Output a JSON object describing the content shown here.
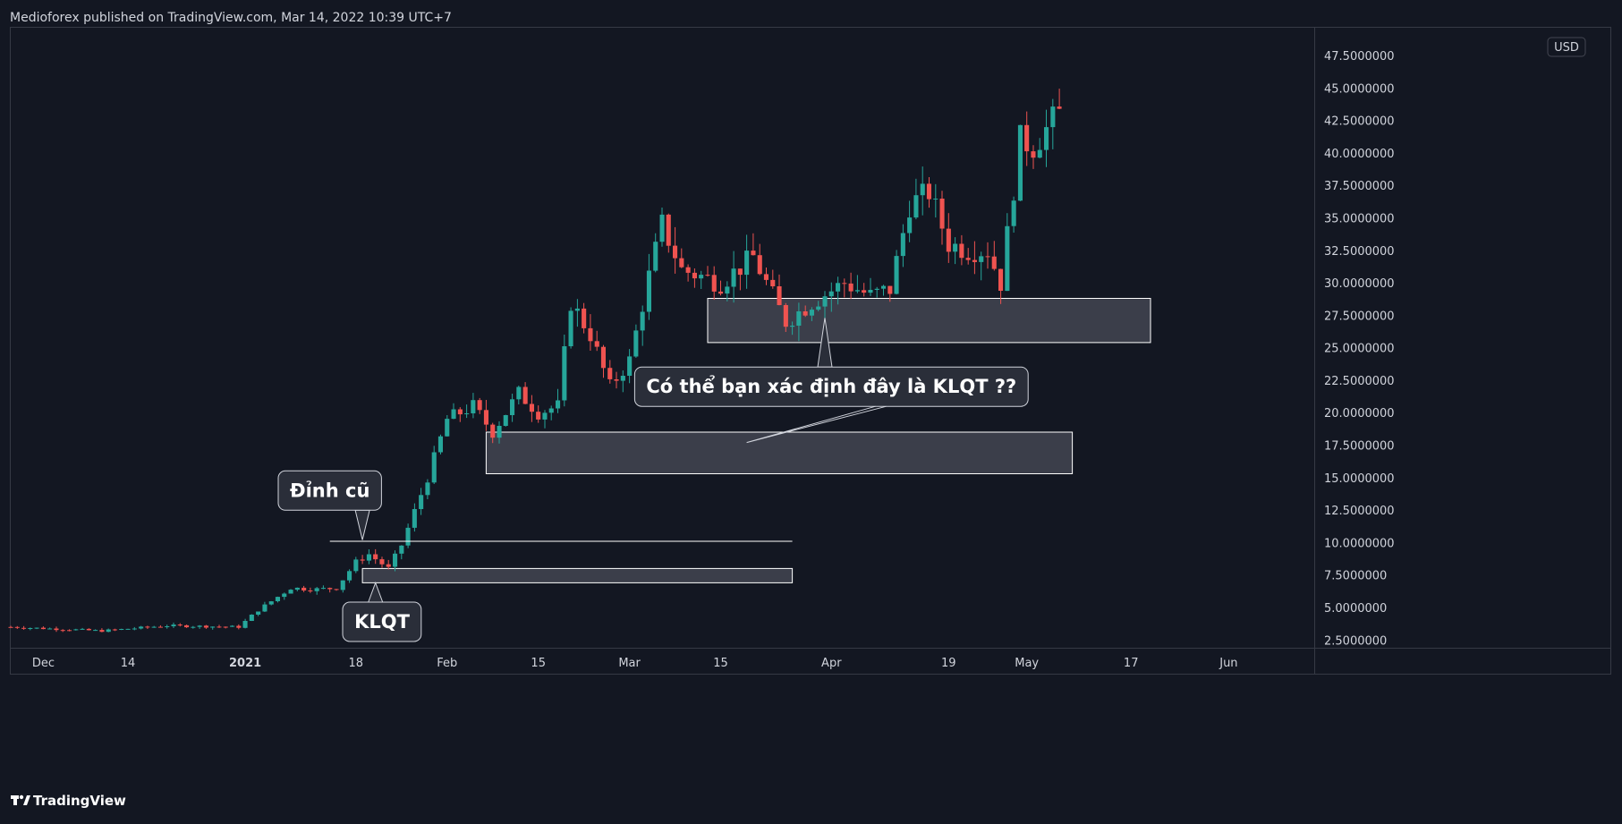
{
  "header": {
    "published_by": "Medioforex published on TradingView.com, Mar 14, 2022 10:39 UTC+7"
  },
  "footer": {
    "brand": "TradingView"
  },
  "colors": {
    "background": "#131722",
    "plot_border": "#363a45",
    "up_candle": "#26a69a",
    "down_candle": "#ef5350",
    "text": "#d1d4dc",
    "annotation_fill": "#2a2e39",
    "box_fill": "rgba(120,123,134,0.40)",
    "box_border": "#ffffff"
  },
  "chart_data": {
    "type": "candlestick",
    "y_axis": {
      "currency": "USD",
      "tick_labels": [
        "47.5000000",
        "45.0000000",
        "42.5000000",
        "40.0000000",
        "37.5000000",
        "35.0000000",
        "32.5000000",
        "30.0000000",
        "27.5000000",
        "25.0000000",
        "22.5000000",
        "20.0000000",
        "17.5000000",
        "15.0000000",
        "12.5000000",
        "10.0000000",
        "7.5000000",
        "5.0000000",
        "2.5000000"
      ],
      "ylim": [
        1.9,
        49.5
      ],
      "scale": "linear"
    },
    "x_axis": {
      "tick_labels": [
        "Dec",
        "14",
        "2021",
        "18",
        "Feb",
        "15",
        "Mar",
        "15",
        "Apr",
        "19",
        "May",
        "17",
        "Jun"
      ],
      "tick_dates": [
        "2020-12-01",
        "2020-12-14",
        "2021-01-01",
        "2021-01-18",
        "2021-02-01",
        "2021-02-15",
        "2021-03-01",
        "2021-03-15",
        "2021-04-01",
        "2021-04-19",
        "2021-05-01",
        "2021-05-17",
        "2021-06-01"
      ],
      "bold_labels": [
        "2021"
      ],
      "start": "2020-11-26",
      "end": "2021-06-14"
    },
    "series_anchors": [
      {
        "date": "2020-11-26",
        "price": 3.5
      },
      {
        "date": "2020-12-10",
        "price": 3.2
      },
      {
        "date": "2020-12-20",
        "price": 3.6
      },
      {
        "date": "2020-12-31",
        "price": 3.5
      },
      {
        "date": "2021-01-03",
        "price": 4.8
      },
      {
        "date": "2021-01-08",
        "price": 6.5
      },
      {
        "date": "2021-01-12",
        "price": 6.4
      },
      {
        "date": "2021-01-15",
        "price": 6.5
      },
      {
        "date": "2021-01-18",
        "price": 8.5
      },
      {
        "date": "2021-01-20",
        "price": 9.1
      },
      {
        "date": "2021-01-23",
        "price": 8.0
      },
      {
        "date": "2021-01-25",
        "price": 9.8
      },
      {
        "date": "2021-01-29",
        "price": 15.0
      },
      {
        "date": "2021-02-01",
        "price": 19.5
      },
      {
        "date": "2021-02-05",
        "price": 20.5
      },
      {
        "date": "2021-02-08",
        "price": 18.5
      },
      {
        "date": "2021-02-12",
        "price": 21.5
      },
      {
        "date": "2021-02-15",
        "price": 20.0
      },
      {
        "date": "2021-02-18",
        "price": 20.5
      },
      {
        "date": "2021-02-20",
        "price": 28.5
      },
      {
        "date": "2021-02-23",
        "price": 26.0
      },
      {
        "date": "2021-02-26",
        "price": 22.0
      },
      {
        "date": "2021-03-01",
        "price": 24.0
      },
      {
        "date": "2021-03-04",
        "price": 30.5
      },
      {
        "date": "2021-03-06",
        "price": 34.5
      },
      {
        "date": "2021-03-09",
        "price": 31.0
      },
      {
        "date": "2021-03-15",
        "price": 30.0
      },
      {
        "date": "2021-03-20",
        "price": 32.0
      },
      {
        "date": "2021-03-23",
        "price": 29.0
      },
      {
        "date": "2021-03-25",
        "price": 27.0
      },
      {
        "date": "2021-03-29",
        "price": 28.5
      },
      {
        "date": "2021-04-03",
        "price": 30.0
      },
      {
        "date": "2021-04-07",
        "price": 29.0
      },
      {
        "date": "2021-04-10",
        "price": 29.5
      },
      {
        "date": "2021-04-13",
        "price": 36.0
      },
      {
        "date": "2021-04-16",
        "price": 37.0
      },
      {
        "date": "2021-04-19",
        "price": 33.0
      },
      {
        "date": "2021-04-22",
        "price": 32.5
      },
      {
        "date": "2021-04-25",
        "price": 32.5
      },
      {
        "date": "2021-04-27",
        "price": 30.0
      },
      {
        "date": "2021-04-30",
        "price": 41.0
      },
      {
        "date": "2021-05-02",
        "price": 40.5
      },
      {
        "date": "2021-05-05",
        "price": 42.5
      },
      {
        "date": "2021-05-06",
        "price": 43.0
      }
    ],
    "last_candle": "2021-05-06",
    "rectangles": [
      {
        "name": "klqt-zone",
        "date_start": "2021-01-19",
        "date_end": "2021-03-26",
        "price_top": 8.0,
        "price_bottom": 6.9
      },
      {
        "name": "previous-klqt-zone",
        "date_start": "2021-02-07",
        "date_end": "2021-05-08",
        "price_top": 18.5,
        "price_bottom": 15.3
      },
      {
        "name": "upper-zone",
        "date_start": "2021-03-13",
        "date_end": "2021-05-20",
        "price_top": 28.8,
        "price_bottom": 25.4
      }
    ],
    "horizontal_lines": [
      {
        "name": "previous-high-line",
        "date_start": "2021-01-14",
        "date_end": "2021-03-26",
        "price": 10.1
      }
    ],
    "annotations": [
      {
        "name": "callout-previous-high",
        "text": "Đỉnh cũ",
        "anchor_date": "2021-01-14",
        "anchor_price": 14.0,
        "pointer_date": "2021-01-19",
        "pointer_price": 10.2
      },
      {
        "name": "callout-klqt",
        "text": "KLQT",
        "anchor_date": "2021-01-22",
        "anchor_price": 3.9,
        "pointer_date": "2021-01-21",
        "pointer_price": 6.9
      },
      {
        "name": "callout-question",
        "text": "Có thể bạn xác định đây là KLQT ??",
        "anchor_date": "2021-04-01",
        "anchor_price": 22.0,
        "pointer_date": "2021-03-31",
        "pointer_price": 27.3,
        "pointer2_date": "2021-03-19",
        "pointer2_price": 17.7
      }
    ]
  }
}
